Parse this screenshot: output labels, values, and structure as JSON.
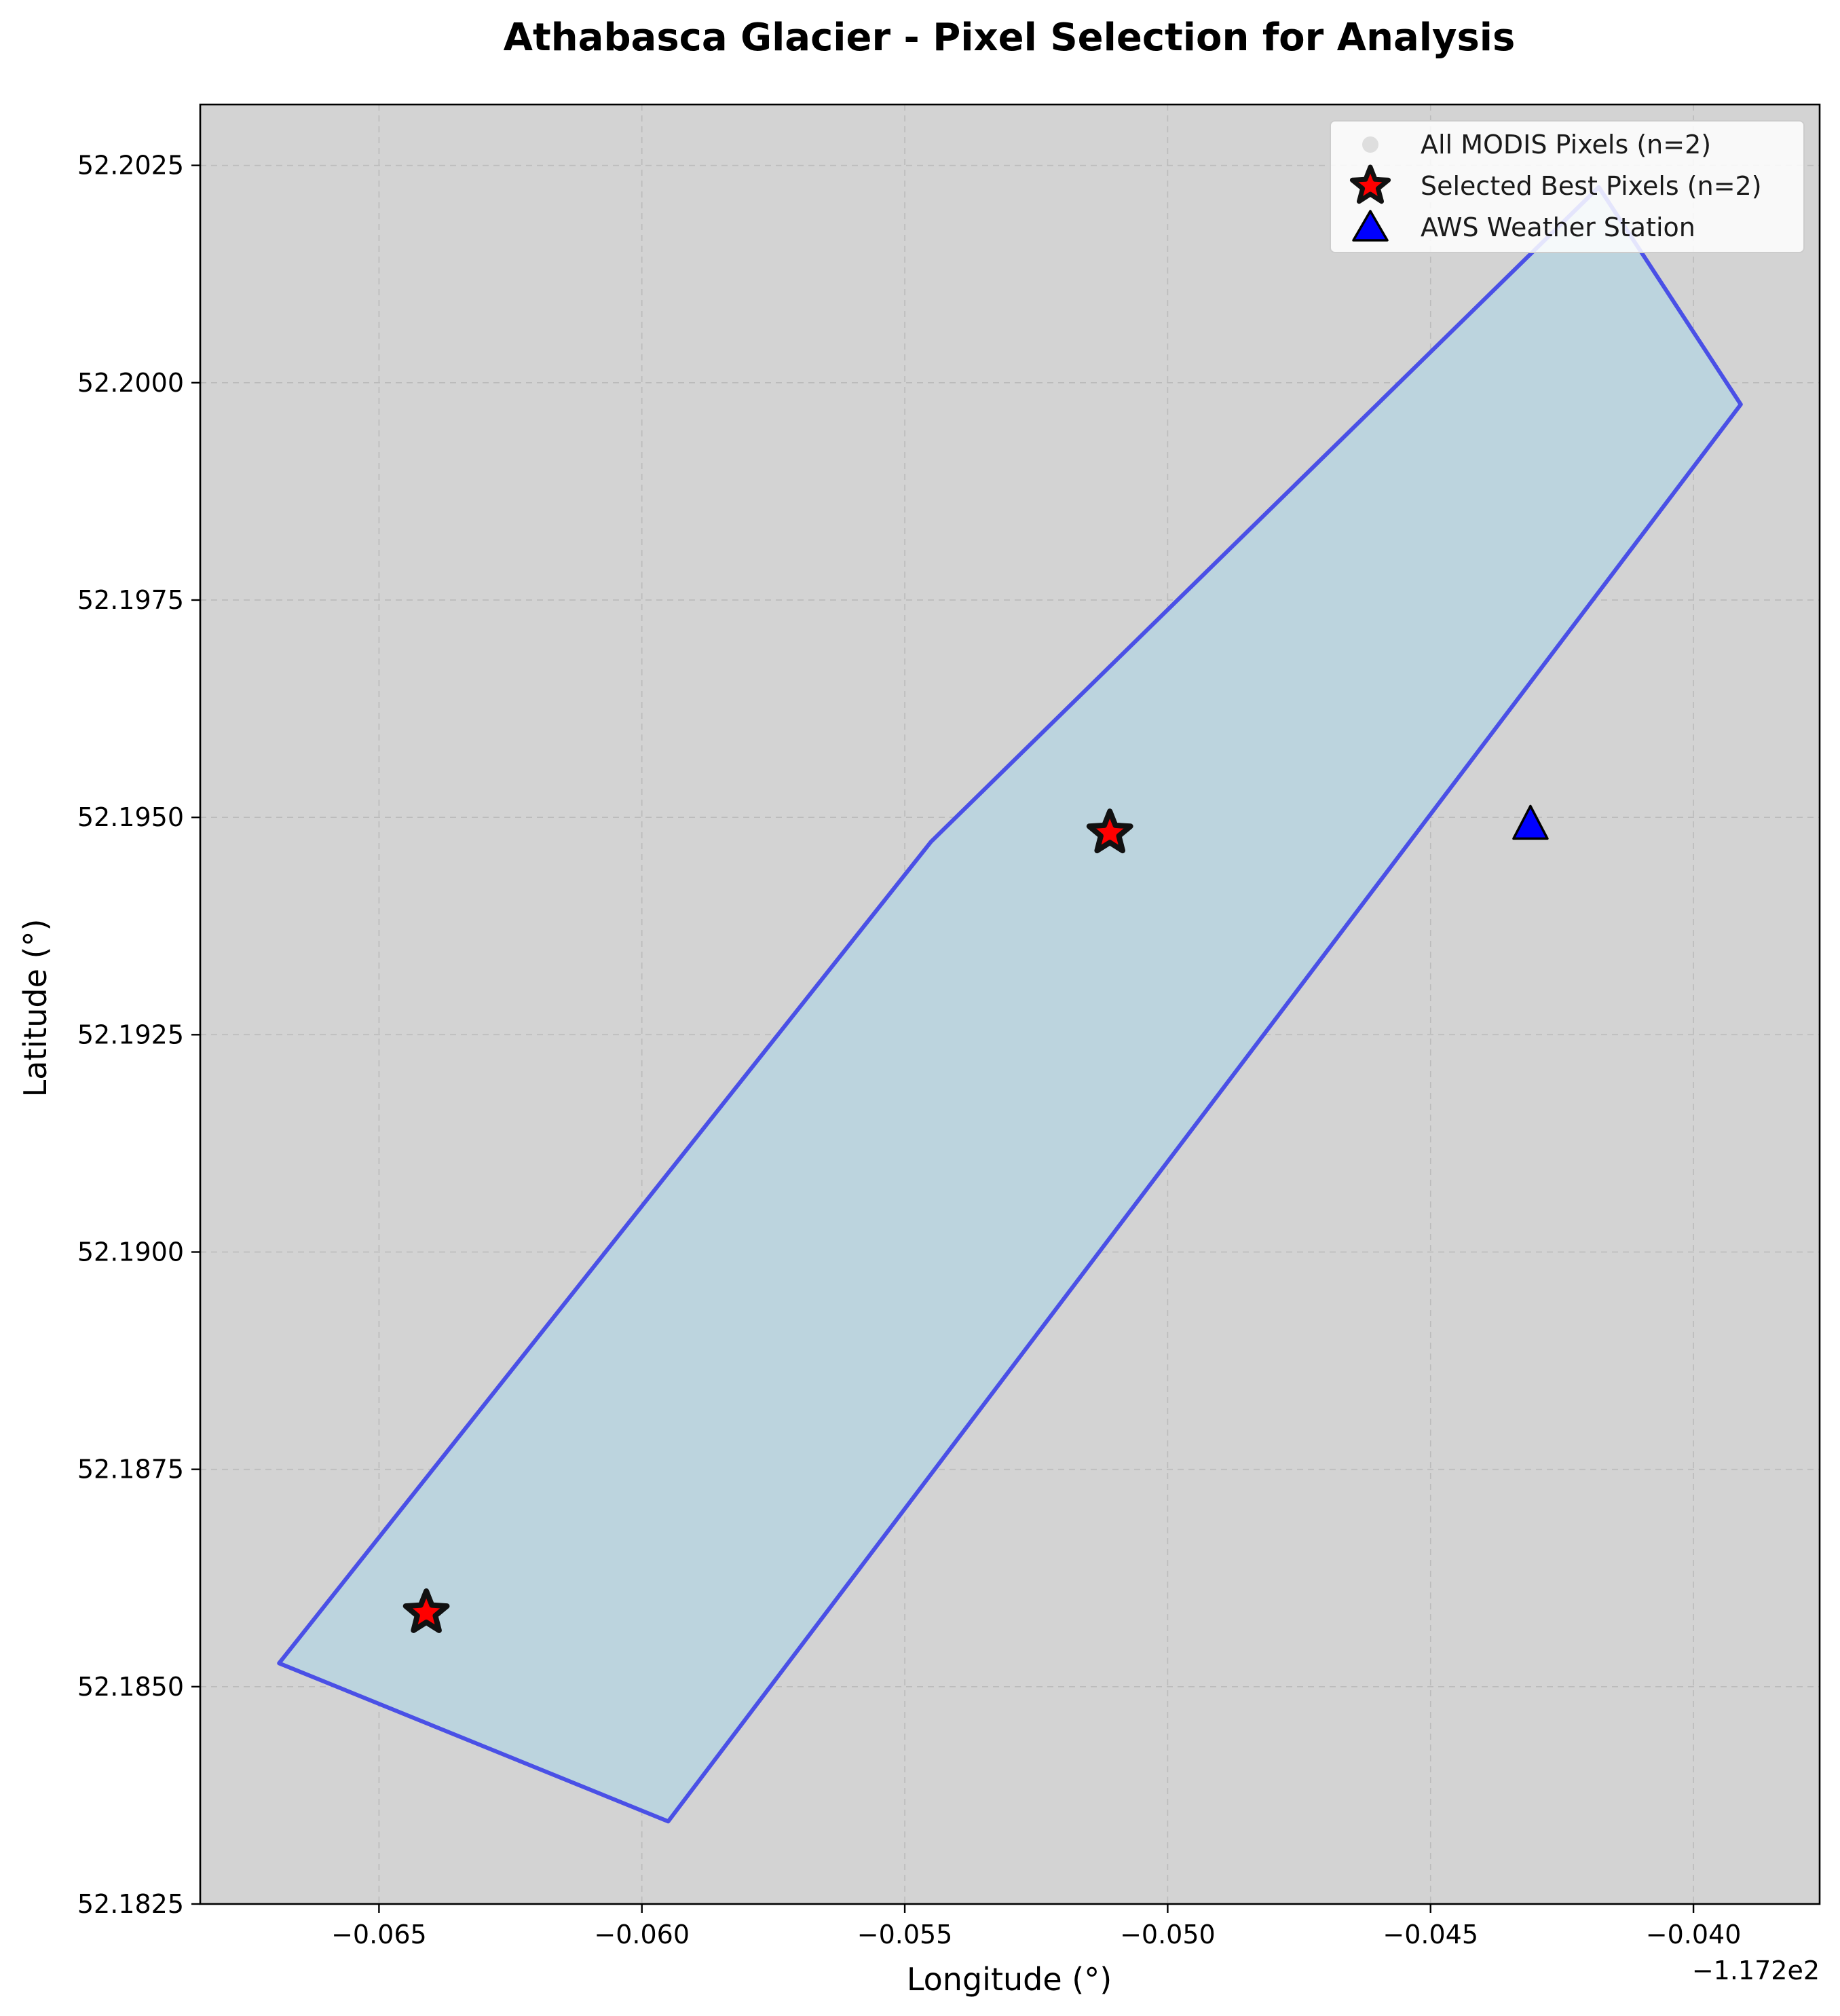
{
  "chart_data": {
    "type": "scatter",
    "title": "Athabasca Glacier - Pixel Selection for Analysis",
    "xlabel": "Longitude (°)",
    "ylabel": "Latitude (°)",
    "x_offset_label": "−1.172e2",
    "xlim": [
      -117.2684,
      -117.2376
    ],
    "ylim": [
      52.1825,
      52.2032
    ],
    "x_ticks": [
      -117.265,
      -117.26,
      -117.255,
      -117.25,
      -117.245,
      -117.24
    ],
    "x_tick_labels": [
      "−0.065",
      "−0.060",
      "−0.055",
      "−0.050",
      "−0.045",
      "−0.040"
    ],
    "y_ticks": [
      52.1825,
      52.185,
      52.1875,
      52.19,
      52.1925,
      52.195,
      52.1975,
      52.2,
      52.2025
    ],
    "y_tick_labels": [
      "52.1825",
      "52.1850",
      "52.1875",
      "52.1900",
      "52.1925",
      "52.1950",
      "52.1975",
      "52.2000",
      "52.2025"
    ],
    "grid": true,
    "legend_position": "top-right",
    "glacier_outline": {
      "fill": "#bcd4de",
      "edge": "#4a50e6",
      "lon": [
        -117.2669,
        -117.2595,
        -117.2391,
        -117.2418,
        -117.2545,
        -117.2669
      ],
      "lat": [
        52.18527,
        52.18345,
        52.19975,
        52.20225,
        52.19472,
        52.18527
      ]
    },
    "series": [
      {
        "name": "All MODIS Pixels (n=2)",
        "marker": "circle",
        "color": "#cccccc",
        "lon": [
          -117.2641,
          -117.2511
        ],
        "lat": [
          52.18585,
          52.19482
        ]
      },
      {
        "name": "Selected Best Pixels (n=2)",
        "marker": "star",
        "color": "#ff0000",
        "lon": [
          -117.2641,
          -117.2511
        ],
        "lat": [
          52.18585,
          52.19482
        ]
      },
      {
        "name": "AWS Weather Station",
        "marker": "triangle",
        "color": "#0000ff",
        "lon": [
          -117.2431
        ],
        "lat": [
          52.19492
        ]
      }
    ]
  }
}
